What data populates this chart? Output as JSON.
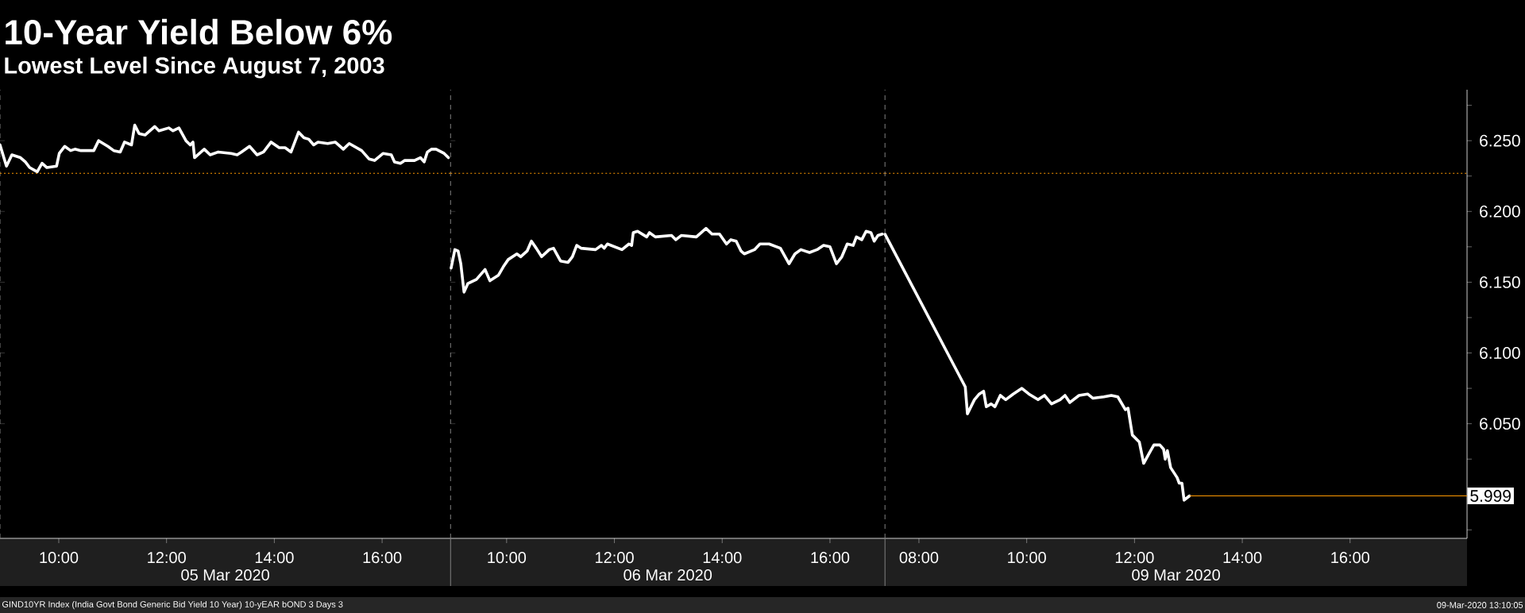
{
  "chart_data": [
    {
      "type": "line",
      "title": "10-Year Yield Below 6%",
      "subtitle": "Lowest Level Since August 7, 2003",
      "xlabel": "05 Mar 2020",
      "xlim": [
        8.91,
        17.27
      ],
      "xticks": [
        {
          "value": 10,
          "label": "10:00"
        },
        {
          "value": 12,
          "label": "12:00"
        },
        {
          "value": 14,
          "label": "14:00"
        },
        {
          "value": 16,
          "label": "16:00"
        }
      ],
      "ylim": [
        5.969,
        6.286
      ],
      "tick_labels": "x",
      "yticks": [
        6.05,
        6.1,
        6.15,
        6.2,
        6.25
      ],
      "series": [
        {
          "color": "#ffffff",
          "x": [
            8.91,
            9.03,
            9.13,
            9.29,
            9.38,
            9.46,
            9.6,
            9.69,
            9.78,
            9.96,
            10.01,
            10.11,
            10.22,
            10.3,
            10.41,
            10.65,
            10.74,
            10.91,
            11.02,
            11.14,
            11.22,
            11.35,
            11.41,
            11.49,
            11.6,
            11.78,
            11.86,
            12.04,
            12.12,
            12.23,
            12.36,
            12.44,
            12.49,
            12.52,
            12.7,
            12.81,
            12.96,
            13.2,
            13.31,
            13.39,
            13.54,
            13.68,
            13.8,
            13.94,
            14.09,
            14.2,
            14.31,
            14.45,
            14.55,
            14.64,
            14.73,
            14.81,
            14.99,
            15.13,
            15.28,
            15.39,
            15.62,
            15.76,
            15.86,
            16.02,
            16.17,
            16.23,
            16.34,
            16.42,
            16.6,
            16.71,
            16.78,
            16.84,
            16.92,
            17.0,
            17.15,
            17.23
          ],
          "values": [
            6.247,
            6.232,
            6.24,
            6.238,
            6.235,
            6.231,
            6.228,
            6.234,
            6.231,
            6.232,
            6.241,
            6.246,
            6.243,
            6.244,
            6.243,
            6.243,
            6.25,
            6.246,
            6.243,
            6.242,
            6.249,
            6.247,
            6.261,
            6.255,
            6.254,
            6.26,
            6.257,
            6.259,
            6.257,
            6.259,
            6.25,
            6.247,
            6.249,
            6.238,
            6.244,
            6.24,
            6.242,
            6.241,
            6.24,
            6.242,
            6.246,
            6.24,
            6.242,
            6.249,
            6.245,
            6.245,
            6.242,
            6.256,
            6.252,
            6.251,
            6.247,
            6.249,
            6.248,
            6.249,
            6.244,
            6.248,
            6.243,
            6.237,
            6.236,
            6.241,
            6.24,
            6.235,
            6.234,
            6.236,
            6.236,
            6.238,
            6.235,
            6.242,
            6.244,
            6.244,
            6.241,
            6.238
          ]
        }
      ],
      "ref_lines": [
        {
          "axis": "y",
          "value": 6.227,
          "color": "#ff9900",
          "line_style": "dotted"
        }
      ]
    },
    {
      "type": "line",
      "xlabel": "06 Mar 2020",
      "xlim": [
        8.96,
        17.02
      ],
      "xticks": [
        {
          "value": 10,
          "label": "10:00"
        },
        {
          "value": 12,
          "label": "12:00"
        },
        {
          "value": 14,
          "label": "14:00"
        },
        {
          "value": 16,
          "label": "16:00"
        }
      ],
      "ylim": [
        5.969,
        6.286
      ],
      "tick_labels": "x",
      "yticks": [
        6.05,
        6.1,
        6.15,
        6.2,
        6.25
      ],
      "series": [
        {
          "color": "#ffffff",
          "x": [
            8.97,
            9.04,
            9.1,
            9.15,
            9.21,
            9.28,
            9.44,
            9.6,
            9.69,
            9.85,
            9.94,
            10.03,
            10.19,
            10.26,
            10.38,
            10.46,
            10.55,
            10.65,
            10.79,
            10.87,
            11.0,
            11.14,
            11.22,
            11.3,
            11.38,
            11.65,
            11.76,
            11.81,
            11.87,
            12.14,
            12.27,
            12.32,
            12.35,
            12.43,
            12.6,
            12.65,
            12.76,
            13.06,
            13.14,
            13.24,
            13.52,
            13.7,
            13.81,
            13.95,
            14.08,
            14.16,
            14.26,
            14.35,
            14.41,
            14.6,
            14.7,
            14.87,
            15.08,
            15.24,
            15.35,
            15.46,
            15.62,
            15.76,
            15.88,
            16.0,
            16.12,
            16.22,
            16.32,
            16.43,
            16.49,
            16.59,
            16.67,
            16.76,
            16.82,
            16.89,
            16.97
          ],
          "values": [
            6.16,
            6.173,
            6.172,
            6.163,
            6.143,
            6.149,
            6.152,
            6.159,
            6.151,
            6.155,
            6.161,
            6.166,
            6.17,
            6.168,
            6.172,
            6.179,
            6.174,
            6.168,
            6.173,
            6.174,
            6.165,
            6.164,
            6.168,
            6.176,
            6.174,
            6.173,
            6.176,
            6.174,
            6.177,
            6.173,
            6.177,
            6.176,
            6.185,
            6.186,
            6.182,
            6.185,
            6.182,
            6.183,
            6.18,
            6.183,
            6.182,
            6.188,
            6.184,
            6.184,
            6.177,
            6.18,
            6.179,
            6.172,
            6.17,
            6.173,
            6.177,
            6.177,
            6.174,
            6.163,
            6.17,
            6.173,
            6.171,
            6.173,
            6.176,
            6.175,
            6.163,
            6.168,
            6.177,
            6.176,
            6.182,
            6.18,
            6.186,
            6.185,
            6.179,
            6.183,
            6.184
          ]
        }
      ],
      "ref_lines": [
        {
          "axis": "y",
          "value": 6.227,
          "color": "#ff9900",
          "line_style": "dotted"
        }
      ]
    },
    {
      "type": "line",
      "xlabel": "09 Mar 2020",
      "xlim": [
        7.37,
        18.17
      ],
      "xticks": [
        {
          "value": 8,
          "label": "08:00"
        },
        {
          "value": 10,
          "label": "10:00"
        },
        {
          "value": 12,
          "label": "12:00"
        },
        {
          "value": 14,
          "label": "14:00"
        },
        {
          "value": 16,
          "label": "16:00"
        }
      ],
      "ylim": [
        5.969,
        6.286
      ],
      "yticks": [
        {
          "value": 5.975,
          "label": null
        },
        {
          "value": 6.0,
          "label": null
        },
        {
          "value": 6.025,
          "label": null
        },
        {
          "value": 6.05,
          "label": "6.050"
        },
        {
          "value": 6.075,
          "label": null
        },
        {
          "value": 6.1,
          "label": "6.100"
        },
        {
          "value": 6.125,
          "label": null
        },
        {
          "value": 6.15,
          "label": "6.150"
        },
        {
          "value": 6.175,
          "label": null
        },
        {
          "value": 6.2,
          "label": "6.200"
        },
        {
          "value": 6.225,
          "label": null
        },
        {
          "value": 6.25,
          "label": "6.250"
        },
        {
          "value": 6.275,
          "label": null
        }
      ],
      "series": [
        {
          "color": "#ffffff",
          "x": [
            7.37,
            8.86,
            8.9,
            9.03,
            9.12,
            9.2,
            9.25,
            9.34,
            9.41,
            9.51,
            9.61,
            9.75,
            9.91,
            10.04,
            10.21,
            10.33,
            10.46,
            10.62,
            10.71,
            10.8,
            10.97,
            11.13,
            11.23,
            11.43,
            11.57,
            11.69,
            11.83,
            11.88,
            11.96,
            12.09,
            12.17,
            12.27,
            12.36,
            12.47,
            12.54,
            12.57,
            12.61,
            12.67,
            12.79,
            12.83,
            12.88,
            12.92,
            13.02
          ],
          "values": [
            6.184,
            6.076,
            6.057,
            6.067,
            6.071,
            6.073,
            6.062,
            6.064,
            6.062,
            6.07,
            6.067,
            6.071,
            6.075,
            6.071,
            6.067,
            6.07,
            6.064,
            6.067,
            6.07,
            6.065,
            6.07,
            6.071,
            6.068,
            6.069,
            6.07,
            6.069,
            6.06,
            6.061,
            6.042,
            6.037,
            6.022,
            6.029,
            6.035,
            6.035,
            6.032,
            6.025,
            6.031,
            6.019,
            6.012,
            6.008,
            6.008,
            5.996,
            5.999
          ]
        }
      ],
      "ref_lines": [
        {
          "axis": "y",
          "value": 6.227,
          "color": "#ff9900",
          "line_style": "dotted"
        },
        {
          "axis": "y",
          "value": 5.999,
          "label": "5.999",
          "color": "#ff9900",
          "line_style": "solid"
        }
      ],
      "annotations": [
        "GIND10YR Index (India Govt Bond Generic Bid Yield 10 Year) 10-yEAR bOND 3 Days 3",
        "09-Mar-2020 13:10:05"
      ]
    }
  ]
}
